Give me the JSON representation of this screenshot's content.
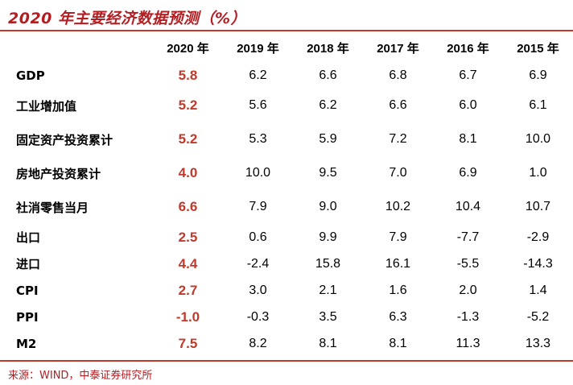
{
  "title": "2020 年主要经济数据预测（%）",
  "highlight_color": "#c0392b",
  "columns": [
    "2020 年",
    "2019 年",
    "2018 年",
    "2017 年",
    "2016 年",
    "2015 年"
  ],
  "rows": [
    {
      "label": "GDP",
      "values": [
        "5.8",
        "6.2",
        "6.6",
        "6.8",
        "6.7",
        "6.9"
      ]
    },
    {
      "label": "工业增加值",
      "values": [
        "5.2",
        "5.6",
        "6.2",
        "6.6",
        "6.0",
        "6.1"
      ]
    },
    {
      "label": "固定资产投资累计",
      "values": [
        "5.2",
        "5.3",
        "5.9",
        "7.2",
        "8.1",
        "10.0"
      ]
    },
    {
      "label": "房地产投资累计",
      "values": [
        "4.0",
        "10.0",
        "9.5",
        "7.0",
        "6.9",
        "1.0"
      ]
    },
    {
      "label": "社消零售当月",
      "values": [
        "6.6",
        "7.9",
        "9.0",
        "10.2",
        "10.4",
        "10.7"
      ]
    },
    {
      "label": "出口",
      "values": [
        "2.5",
        "0.6",
        "9.9",
        "7.9",
        "-7.7",
        "-2.9"
      ]
    },
    {
      "label": "进口",
      "values": [
        "4.4",
        "-2.4",
        "15.8",
        "16.1",
        "-5.5",
        "-14.3"
      ]
    },
    {
      "label": "CPI",
      "values": [
        "2.7",
        "3.0",
        "2.1",
        "1.6",
        "2.0",
        "1.4"
      ]
    },
    {
      "label": "PPI",
      "values": [
        "-1.0",
        "-0.3",
        "3.5",
        "6.3",
        "-1.3",
        "-5.2"
      ]
    },
    {
      "label": "M2",
      "values": [
        "7.5",
        "8.2",
        "8.1",
        "8.1",
        "11.3",
        "13.3"
      ]
    }
  ],
  "source": "来源：WIND，中泰证券研究所"
}
